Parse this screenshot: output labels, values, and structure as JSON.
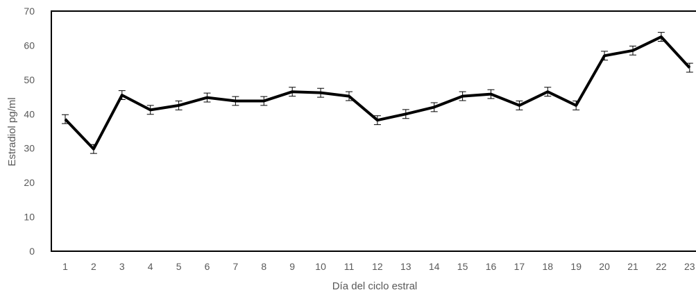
{
  "chart_data": {
    "type": "line",
    "title": "",
    "xlabel": "Día del ciclo estral",
    "ylabel": "Estradiol pg/ml",
    "ylim": [
      0,
      70
    ],
    "yticks": [
      0,
      10,
      20,
      30,
      40,
      50,
      60,
      70
    ],
    "grid": false,
    "legend": "none",
    "x": [
      1,
      2,
      3,
      4,
      5,
      6,
      7,
      8,
      9,
      10,
      11,
      12,
      13,
      14,
      15,
      16,
      17,
      18,
      19,
      20,
      21,
      22,
      23
    ],
    "series": [
      {
        "values": [
          38.5,
          29.8,
          45.5,
          41.2,
          42.5,
          44.8,
          43.8,
          43.8,
          46.5,
          46.2,
          45.2,
          38.2,
          40.0,
          42.0,
          45.2,
          45.8,
          42.5,
          46.5,
          42.5,
          57.0,
          58.5,
          62.5,
          53.5
        ],
        "error": [
          1.3,
          1.3,
          1.3,
          1.3,
          1.3,
          1.3,
          1.3,
          1.3,
          1.3,
          1.3,
          1.3,
          1.3,
          1.3,
          1.3,
          1.3,
          1.3,
          1.3,
          1.3,
          1.3,
          1.3,
          1.3,
          1.3,
          1.3
        ],
        "color": "#000000"
      }
    ]
  }
}
